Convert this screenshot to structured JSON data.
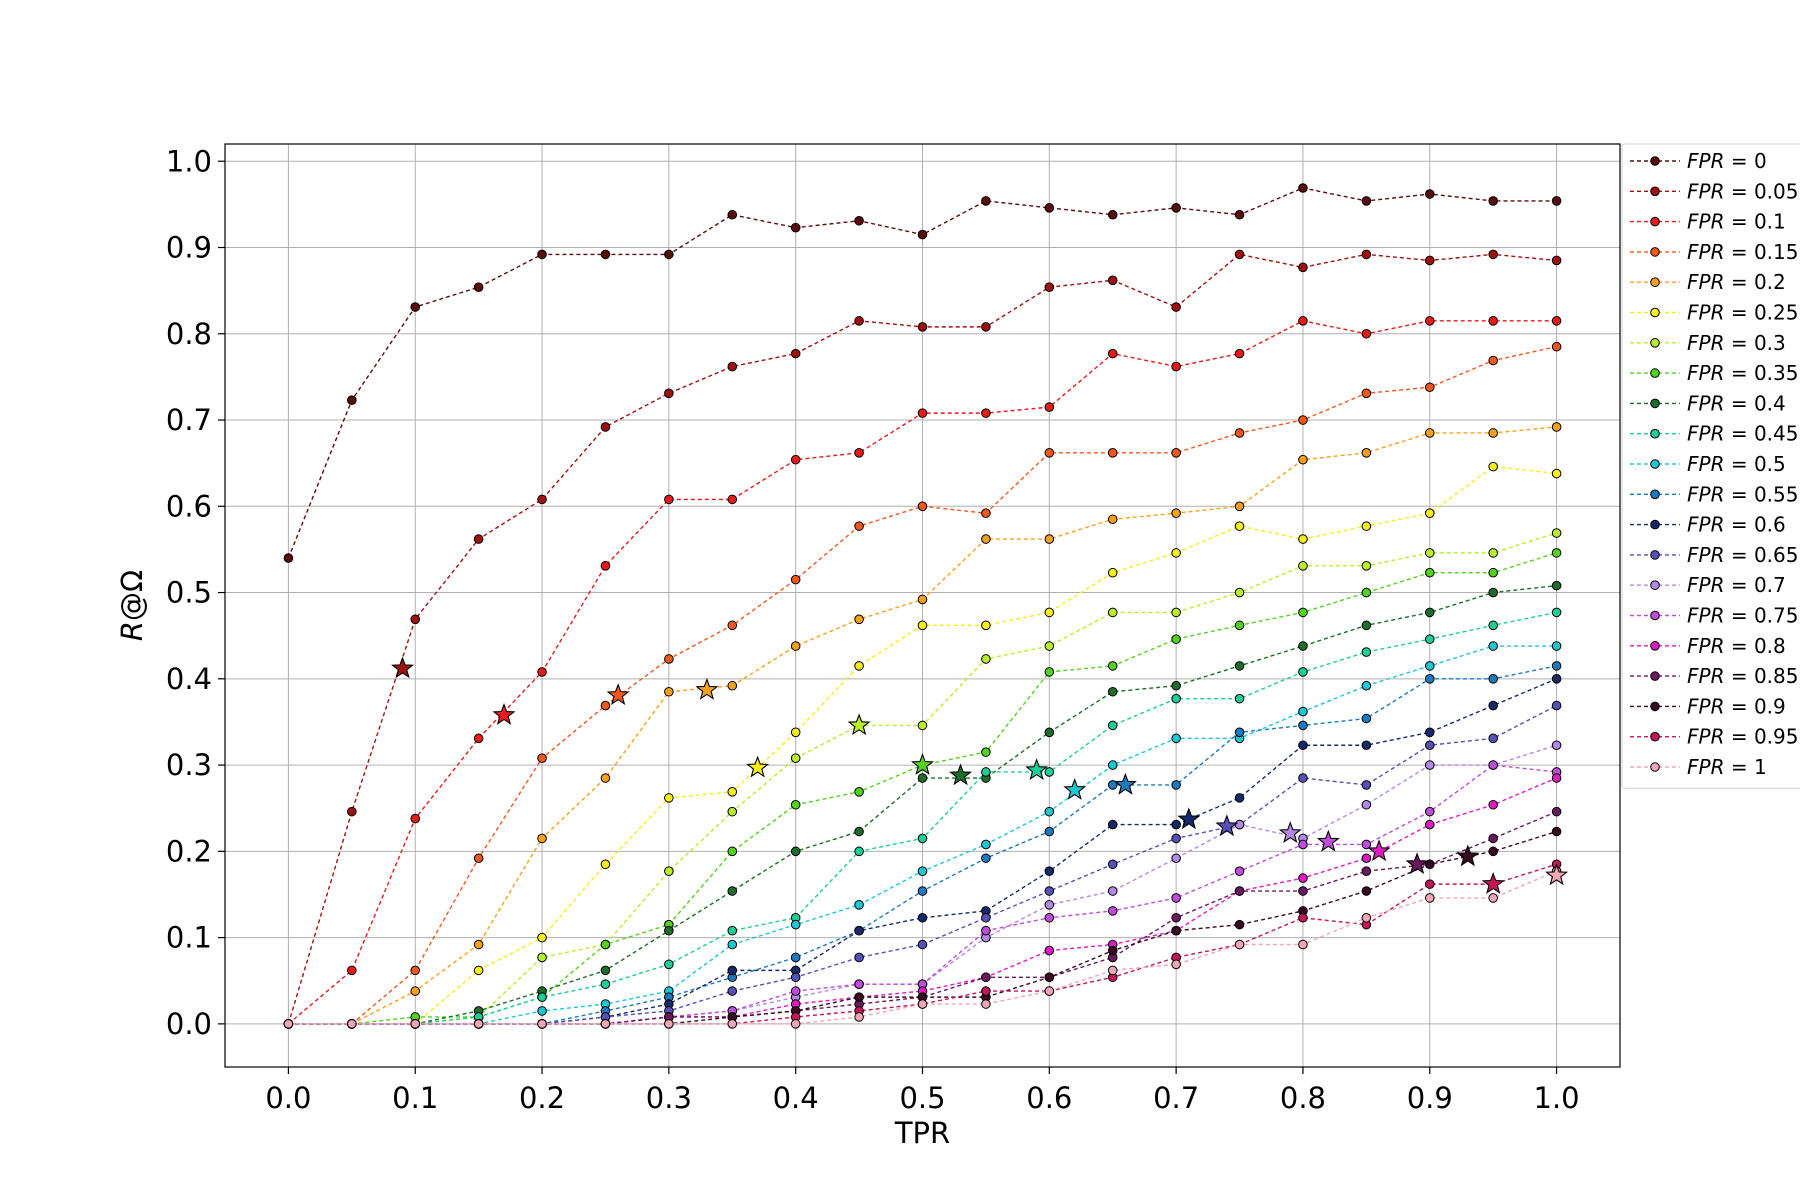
{
  "chart_data": {
    "type": "line",
    "xlabel": "TPR",
    "ylabel": "R@Ω",
    "xlim": [
      -0.05,
      1.05
    ],
    "ylim": [
      -0.05,
      1.02
    ],
    "xticks": [
      "0.0",
      "0.1",
      "0.2",
      "0.3",
      "0.4",
      "0.5",
      "0.6",
      "0.7",
      "0.8",
      "0.9",
      "1.0"
    ],
    "yticks": [
      "0.0",
      "0.1",
      "0.2",
      "0.3",
      "0.4",
      "0.5",
      "0.6",
      "0.7",
      "0.8",
      "0.9",
      "1.0"
    ],
    "grid": true,
    "legend_position": "outside-right",
    "x": [
      0,
      0.05,
      0.1,
      0.15,
      0.2,
      0.25,
      0.3,
      0.35,
      0.4,
      0.45,
      0.5,
      0.55,
      0.6,
      0.65,
      0.7,
      0.75,
      0.8,
      0.85,
      0.9,
      0.95,
      1.0
    ],
    "series": [
      {
        "name": "FPR = 0",
        "legend_value": "0",
        "color": "#5a0d0d",
        "values": [
          0.54,
          0.723,
          0.831,
          0.854,
          0.892,
          0.892,
          0.892,
          0.938,
          0.923,
          0.931,
          0.915,
          0.954,
          0.946,
          0.938,
          0.946,
          0.938,
          0.969,
          0.954,
          0.962,
          0.954,
          0.954
        ],
        "star": null
      },
      {
        "name": "FPR = 0.05",
        "legend_value": "0.05",
        "color": "#a01010",
        "values": [
          0,
          0.246,
          0.469,
          0.562,
          0.608,
          0.692,
          0.731,
          0.762,
          0.777,
          0.815,
          0.808,
          0.808,
          0.854,
          0.862,
          0.831,
          0.892,
          0.877,
          0.892,
          0.885,
          0.892,
          0.885
        ],
        "star": {
          "x": 0.09,
          "y": 0.412
        }
      },
      {
        "name": "FPR = 0.1",
        "legend_value": "0.1",
        "color": "#e81a1a",
        "values": [
          0,
          0.062,
          0.238,
          0.331,
          0.408,
          0.531,
          0.608,
          0.608,
          0.654,
          0.662,
          0.708,
          0.708,
          0.715,
          0.777,
          0.762,
          0.777,
          0.815,
          0.8,
          0.815,
          0.815,
          0.815
        ],
        "star": {
          "x": 0.17,
          "y": 0.358
        }
      },
      {
        "name": "FPR = 0.15",
        "legend_value": "0.15",
        "color": "#f2581b",
        "values": [
          0,
          0,
          0.062,
          0.192,
          0.308,
          0.369,
          0.423,
          0.462,
          0.515,
          0.577,
          0.6,
          0.592,
          0.662,
          0.662,
          0.662,
          0.685,
          0.7,
          0.731,
          0.738,
          0.769,
          0.785
        ],
        "star": {
          "x": 0.26,
          "y": 0.381
        }
      },
      {
        "name": "FPR = 0.2",
        "legend_value": "0.2",
        "color": "#f7a11b",
        "values": [
          0,
          0,
          0.038,
          0.092,
          0.215,
          0.285,
          0.385,
          0.392,
          0.438,
          0.469,
          0.492,
          0.562,
          0.562,
          0.585,
          0.592,
          0.6,
          0.654,
          0.662,
          0.685,
          0.685,
          0.692
        ],
        "star": {
          "x": 0.33,
          "y": 0.387
        }
      },
      {
        "name": "FPR = 0.25",
        "legend_value": "0.25",
        "color": "#f5ee1a",
        "values": [
          0,
          0,
          0,
          0.062,
          0.1,
          0.185,
          0.262,
          0.269,
          0.338,
          0.415,
          0.462,
          0.462,
          0.477,
          0.523,
          0.546,
          0.577,
          0.562,
          0.577,
          0.592,
          0.646,
          0.638
        ],
        "star": {
          "x": 0.37,
          "y": 0.297
        }
      },
      {
        "name": "FPR = 0.3",
        "legend_value": "0.3",
        "color": "#b8ef2a",
        "values": [
          0,
          0,
          0,
          0.008,
          0.077,
          0.092,
          0.177,
          0.246,
          0.308,
          0.346,
          0.346,
          0.423,
          0.438,
          0.477,
          0.477,
          0.5,
          0.531,
          0.531,
          0.546,
          0.546,
          0.569
        ],
        "star": {
          "x": 0.45,
          "y": 0.346
        }
      },
      {
        "name": "FPR = 0.35",
        "legend_value": "0.35",
        "color": "#52d41c",
        "values": [
          0,
          0,
          0.008,
          0.008,
          0.031,
          0.092,
          0.115,
          0.2,
          0.254,
          0.269,
          0.3,
          0.315,
          0.408,
          0.415,
          0.446,
          0.462,
          0.477,
          0.5,
          0.523,
          0.523,
          0.546
        ],
        "star": {
          "x": 0.5,
          "y": 0.3
        }
      },
      {
        "name": "FPR = 0.4",
        "legend_value": "0.4",
        "color": "#1d6e2a",
        "values": [
          0,
          0,
          0,
          0.015,
          0.038,
          0.062,
          0.108,
          0.154,
          0.2,
          0.223,
          0.285,
          0.285,
          0.338,
          0.385,
          0.392,
          0.415,
          0.438,
          0.462,
          0.477,
          0.5,
          0.508
        ],
        "star": {
          "x": 0.53,
          "y": 0.288
        }
      },
      {
        "name": "FPR = 0.45",
        "legend_value": "0.45",
        "color": "#1ccf96",
        "values": [
          0,
          0,
          0,
          0.008,
          0.031,
          0.046,
          0.069,
          0.108,
          0.123,
          0.2,
          0.215,
          0.292,
          0.292,
          0.346,
          0.377,
          0.377,
          0.408,
          0.431,
          0.446,
          0.462,
          0.477
        ],
        "star": {
          "x": 0.59,
          "y": 0.294
        }
      },
      {
        "name": "FPR = 0.5",
        "legend_value": "0.5",
        "color": "#1cc8d4",
        "values": [
          0,
          0,
          0,
          0,
          0.015,
          0.023,
          0.038,
          0.092,
          0.115,
          0.138,
          0.177,
          0.208,
          0.246,
          0.3,
          0.331,
          0.331,
          0.362,
          0.392,
          0.415,
          0.438,
          0.438
        ],
        "star": {
          "x": 0.62,
          "y": 0.271
        }
      },
      {
        "name": "FPR = 0.55",
        "legend_value": "0.55",
        "color": "#1b7ac0",
        "values": [
          0,
          0,
          0,
          0,
          0,
          0.015,
          0.031,
          0.054,
          0.077,
          0.108,
          0.154,
          0.192,
          0.223,
          0.277,
          0.277,
          0.338,
          0.346,
          0.354,
          0.4,
          0.4,
          0.415
        ],
        "star": {
          "x": 0.66,
          "y": 0.277
        }
      },
      {
        "name": "FPR = 0.6",
        "legend_value": "0.6",
        "color": "#16296b",
        "values": [
          0,
          0,
          0,
          0,
          0,
          0.008,
          0.023,
          0.062,
          0.062,
          0.108,
          0.123,
          0.131,
          0.177,
          0.231,
          0.231,
          0.262,
          0.323,
          0.323,
          0.338,
          0.369,
          0.4
        ],
        "star": {
          "x": 0.71,
          "y": 0.237
        }
      },
      {
        "name": "FPR = 0.65",
        "legend_value": "0.65",
        "color": "#5750b8",
        "values": [
          0,
          0,
          0,
          0,
          0,
          0.008,
          0.015,
          0.038,
          0.054,
          0.077,
          0.092,
          0.123,
          0.154,
          0.185,
          0.215,
          0.231,
          0.285,
          0.277,
          0.323,
          0.331,
          0.369
        ],
        "star": {
          "x": 0.74,
          "y": 0.229
        }
      },
      {
        "name": "FPR = 0.7",
        "legend_value": "0.7",
        "color": "#b28ae6",
        "values": [
          0,
          0,
          0,
          0,
          0,
          0,
          0.008,
          0.015,
          0.031,
          0.046,
          0.046,
          0.1,
          0.138,
          0.154,
          0.192,
          0.231,
          0.215,
          0.254,
          0.3,
          0.3,
          0.323
        ],
        "star": {
          "x": 0.79,
          "y": 0.221
        }
      },
      {
        "name": "FPR = 0.75",
        "legend_value": "0.75",
        "color": "#c04cdc",
        "values": [
          0,
          0,
          0,
          0,
          0,
          0,
          0.008,
          0.015,
          0.038,
          0.046,
          0.046,
          0.108,
          0.123,
          0.131,
          0.146,
          0.177,
          0.208,
          0.208,
          0.246,
          0.3,
          0.292
        ],
        "star": {
          "x": 0.82,
          "y": 0.211
        }
      },
      {
        "name": "FPR = 0.8",
        "legend_value": "0.8",
        "color": "#e01ac4",
        "values": [
          0,
          0,
          0,
          0,
          0,
          0,
          0.008,
          0.008,
          0.023,
          0.031,
          0.038,
          0.054,
          0.085,
          0.092,
          0.108,
          0.154,
          0.169,
          0.192,
          0.231,
          0.254,
          0.285
        ],
        "star": {
          "x": 0.86,
          "y": 0.2
        }
      },
      {
        "name": "FPR = 0.85",
        "legend_value": "0.85",
        "color": "#6b1860",
        "values": [
          0,
          0,
          0,
          0,
          0,
          0,
          0.008,
          0.008,
          0.015,
          0.023,
          0.031,
          0.054,
          0.054,
          0.077,
          0.123,
          0.154,
          0.154,
          0.177,
          0.185,
          0.215,
          0.246
        ],
        "star": {
          "x": 0.89,
          "y": 0.185
        }
      },
      {
        "name": "FPR = 0.9",
        "legend_value": "0.9",
        "color": "#3a0a22",
        "values": [
          0,
          0,
          0,
          0,
          0,
          0,
          0,
          0.008,
          0.015,
          0.031,
          0.031,
          0.031,
          0.054,
          0.085,
          0.108,
          0.115,
          0.131,
          0.154,
          0.185,
          0.2,
          0.223
        ],
        "star": {
          "x": 0.93,
          "y": 0.194
        }
      },
      {
        "name": "FPR = 0.95",
        "legend_value": "0.95",
        "color": "#c41658",
        "values": [
          0,
          0,
          0,
          0,
          0,
          0,
          0,
          0,
          0.008,
          0.015,
          0.023,
          0.038,
          0.038,
          0.054,
          0.077,
          0.092,
          0.123,
          0.115,
          0.162,
          0.162,
          0.185
        ],
        "star": {
          "x": 0.95,
          "y": 0.162
        }
      },
      {
        "name": "FPR = 1",
        "legend_value": "1",
        "color": "#f0a6b6",
        "values": [
          0,
          0,
          0,
          0,
          0,
          0,
          0,
          0,
          0,
          0.008,
          0.023,
          0.023,
          0.038,
          0.062,
          0.069,
          0.092,
          0.092,
          0.123,
          0.146,
          0.146,
          0.177
        ],
        "star": {
          "x": 1.0,
          "y": 0.172
        }
      }
    ],
    "legend_prefix": "FPR",
    "legend_equals": " = "
  }
}
